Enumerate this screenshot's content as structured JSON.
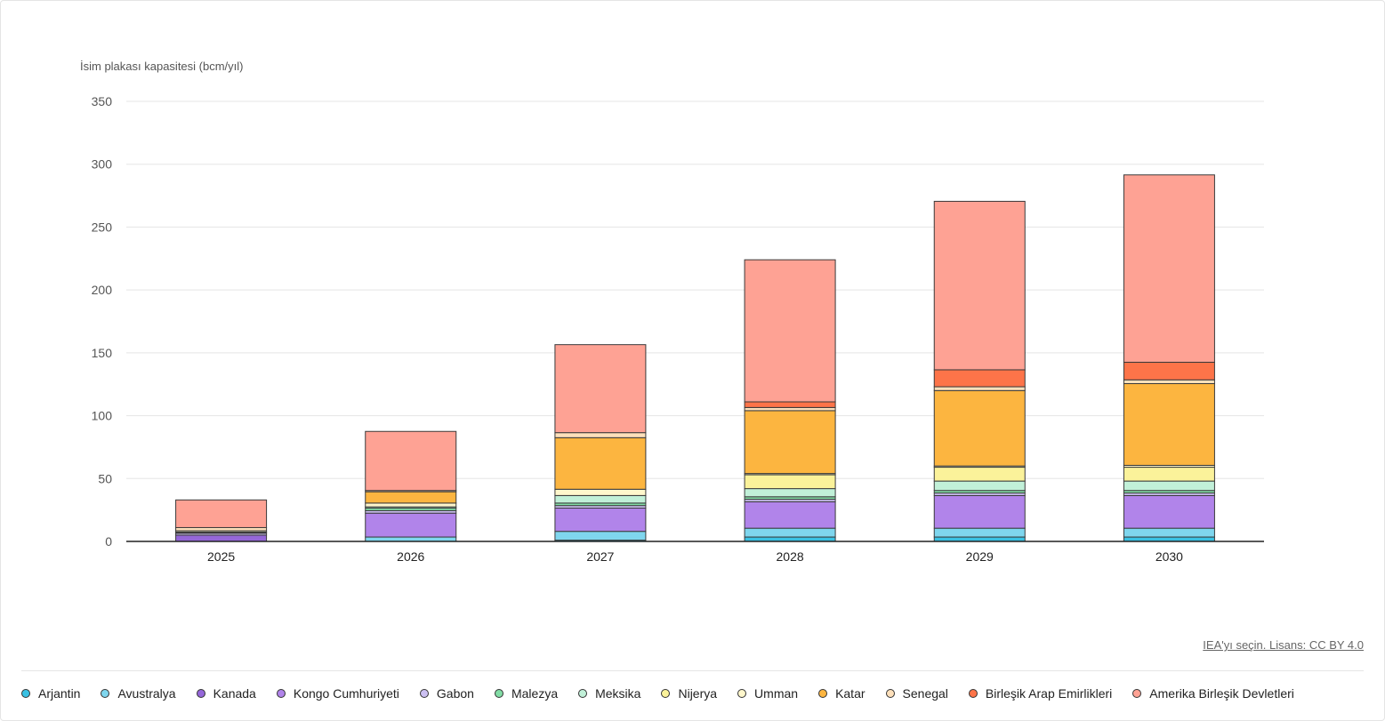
{
  "chart_data": {
    "type": "bar",
    "stacked": true,
    "ylabel": "İsim plakası kapasitesi (bcm/yıl)",
    "xlabel": "",
    "ylim": [
      0,
      350
    ],
    "yticks": [
      0,
      50,
      100,
      150,
      200,
      250,
      300,
      350
    ],
    "grid": true,
    "legend_position": "bottom",
    "categories": [
      "2025",
      "2026",
      "2027",
      "2028",
      "2029",
      "2030"
    ],
    "series": [
      {
        "name": "Arjantin",
        "color": "#39c1e3",
        "values": [
          0,
          0,
          1,
          3.5,
          3.5,
          3.5
        ]
      },
      {
        "name": "Avustralya",
        "color": "#7fd6ee",
        "values": [
          0,
          3.5,
          7,
          7,
          7,
          7
        ]
      },
      {
        "name": "Kanada",
        "color": "#9567d9",
        "values": [
          5,
          0,
          0,
          0,
          0,
          0
        ]
      },
      {
        "name": "Kongo Cumhuriyeti",
        "color": "#b184ea",
        "values": [
          0,
          19,
          18.5,
          21,
          26,
          26
        ]
      },
      {
        "name": "Gabon",
        "color": "#ccc0f2",
        "values": [
          1.5,
          2,
          2,
          2,
          2,
          2
        ]
      },
      {
        "name": "Malezya",
        "color": "#82dca5",
        "values": [
          0.5,
          2,
          2,
          2,
          2,
          2
        ]
      },
      {
        "name": "Meksika",
        "color": "#c1f0d8",
        "values": [
          0.5,
          1,
          6,
          6.5,
          7.5,
          7.5
        ]
      },
      {
        "name": "Nijerya",
        "color": "#fbf29a",
        "values": [
          0,
          0,
          0,
          11,
          11,
          11
        ]
      },
      {
        "name": "Umman",
        "color": "#fff7cc",
        "values": [
          1,
          3,
          5,
          1,
          1,
          1.5
        ]
      },
      {
        "name": "Katar",
        "color": "#fcb540",
        "values": [
          0,
          9,
          41,
          50,
          60,
          65
        ]
      },
      {
        "name": "Senegal",
        "color": "#fde0bb",
        "values": [
          2.5,
          1,
          4,
          2.5,
          3,
          3
        ]
      },
      {
        "name": "Birleşik Arap Emirlikleri",
        "color": "#fd7449",
        "values": [
          0,
          0,
          0,
          4.5,
          13.5,
          14
        ]
      },
      {
        "name": "Amerika Birleşik Devletleri",
        "color": "#fea294",
        "values": [
          22,
          47,
          70,
          113,
          134,
          149
        ]
      }
    ]
  },
  "source": {
    "label": "IEA'yı seçin. Lisans: CC BY 4.0"
  }
}
